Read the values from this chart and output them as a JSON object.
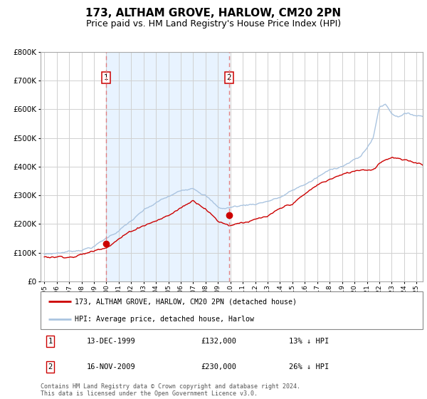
{
  "title": "173, ALTHAM GROVE, HARLOW, CM20 2PN",
  "subtitle": "Price paid vs. HM Land Registry's House Price Index (HPI)",
  "title_fontsize": 11,
  "subtitle_fontsize": 9,
  "hpi_color": "#aac4e0",
  "price_color": "#cc0000",
  "shade_color": "#ddeeff",
  "dashed_color": "#e08080",
  "marker_color": "#cc0000",
  "bg_color": "#ffffff",
  "grid_color": "#d0d0d0",
  "ylim": [
    0,
    800000
  ],
  "sale1_x": 1999.96,
  "sale1_y": 132000,
  "sale1_label": "1",
  "sale2_x": 2009.88,
  "sale2_y": 230000,
  "sale2_label": "2",
  "legend_entries": [
    "173, ALTHAM GROVE, HARLOW, CM20 2PN (detached house)",
    "HPI: Average price, detached house, Harlow"
  ],
  "table_rows": [
    [
      "1",
      "13-DEC-1999",
      "£132,000",
      "13% ↓ HPI"
    ],
    [
      "2",
      "16-NOV-2009",
      "£230,000",
      "26% ↓ HPI"
    ]
  ],
  "footnote": "Contains HM Land Registry data © Crown copyright and database right 2024.\nThis data is licensed under the Open Government Licence v3.0.",
  "xmin": 1994.7,
  "xmax": 2025.5
}
